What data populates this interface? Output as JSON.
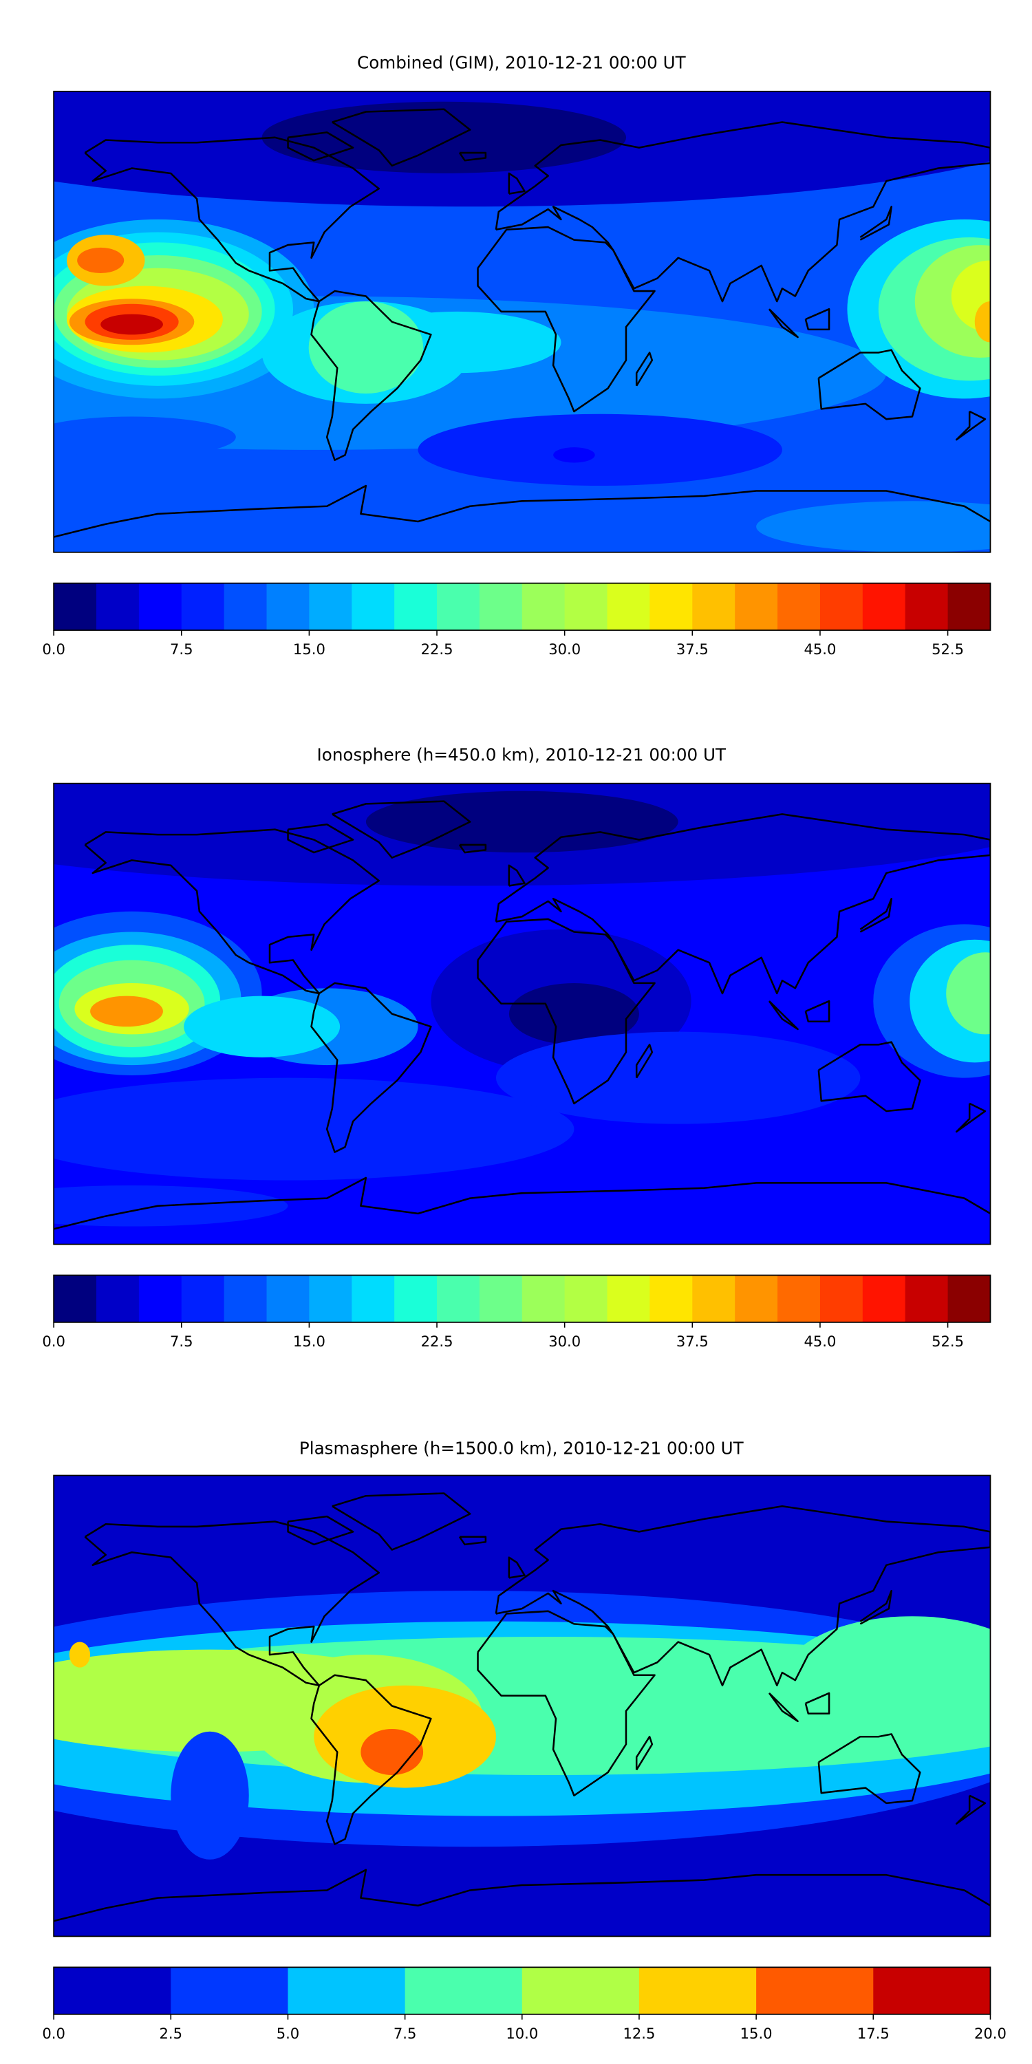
{
  "chart_data": [
    {
      "type": "heatmap",
      "title": "Combined (GIM), 2010-12-21 00:00 UT",
      "projection": "equirectangular world map with coastlines",
      "colorbar": {
        "levels_min": 0.0,
        "levels_max": 55.0,
        "level_step": 2.5,
        "tick_labels": [
          "0.0",
          "7.5",
          "15.0",
          "22.5",
          "30.0",
          "37.5",
          "45.0",
          "52.5"
        ],
        "tick_values": [
          0,
          7.5,
          15,
          22.5,
          30,
          37.5,
          45,
          52.5
        ],
        "colors": [
          "#00007f",
          "#0000c8",
          "#0000ff",
          "#0020ff",
          "#0050ff",
          "#0080ff",
          "#00acff",
          "#00dcfe",
          "#1affd8",
          "#4affad",
          "#6dff8a",
          "#9cff5a",
          "#b3ff44",
          "#daff1d",
          "#ffe500",
          "#ffc000",
          "#ff9400",
          "#ff6a00",
          "#ff3d00",
          "#ff1400",
          "#c80000",
          "#8b0000"
        ]
      },
      "features": {
        "max_region": "central Pacific near equator (~50-55)",
        "secondary_max": "Pacific north of Hawaii (~40-45)",
        "min_region": "North Atlantic / Arctic (~0-5)"
      }
    },
    {
      "type": "heatmap",
      "title": "Ionosphere  (h=450.0 km), 2010-12-21 00:00 UT",
      "projection": "equirectangular world map with coastlines",
      "colorbar": {
        "levels_min": 0.0,
        "levels_max": 55.0,
        "level_step": 2.5,
        "tick_labels": [
          "0.0",
          "7.5",
          "15.0",
          "22.5",
          "30.0",
          "37.5",
          "45.0",
          "52.5"
        ],
        "tick_values": [
          0,
          7.5,
          15,
          22.5,
          30,
          37.5,
          45,
          52.5
        ],
        "colors": [
          "#00007f",
          "#0000c8",
          "#0000ff",
          "#0020ff",
          "#0050ff",
          "#0080ff",
          "#00acff",
          "#00dcfe",
          "#1affd8",
          "#4affad",
          "#6dff8a",
          "#9cff5a",
          "#b3ff44",
          "#daff1d",
          "#ffe500",
          "#ffc000",
          "#ff9400",
          "#ff6a00",
          "#ff3d00",
          "#ff1400",
          "#c80000",
          "#8b0000"
        ]
      },
      "features": {
        "max_region": "central Pacific near equator (~40-42)",
        "min_region": "Africa / Atlantic / Arctic (~0-5)"
      }
    },
    {
      "type": "heatmap",
      "title": "Plasmasphere (h=1500.0 km), 2010-12-21 00:00 UT",
      "projection": "equirectangular world map with coastlines",
      "colorbar": {
        "levels_min": 0.0,
        "levels_max": 20.0,
        "level_step": 2.5,
        "tick_labels": [
          "0.0",
          "2.5",
          "5.0",
          "7.5",
          "10.0",
          "12.5",
          "15.0",
          "17.5",
          "20.0"
        ],
        "tick_values": [
          0,
          2.5,
          5,
          7.5,
          10,
          12.5,
          15,
          17.5,
          20
        ],
        "colors": [
          "#0000c8",
          "#0038ff",
          "#00c4ff",
          "#4affad",
          "#b0ff46",
          "#ffd000",
          "#ff5a00",
          "#c80000"
        ]
      },
      "features": {
        "max_region": "southern Brazil (~15-17.5)",
        "min_region": "high latitudes (~0-2.5)"
      }
    }
  ]
}
